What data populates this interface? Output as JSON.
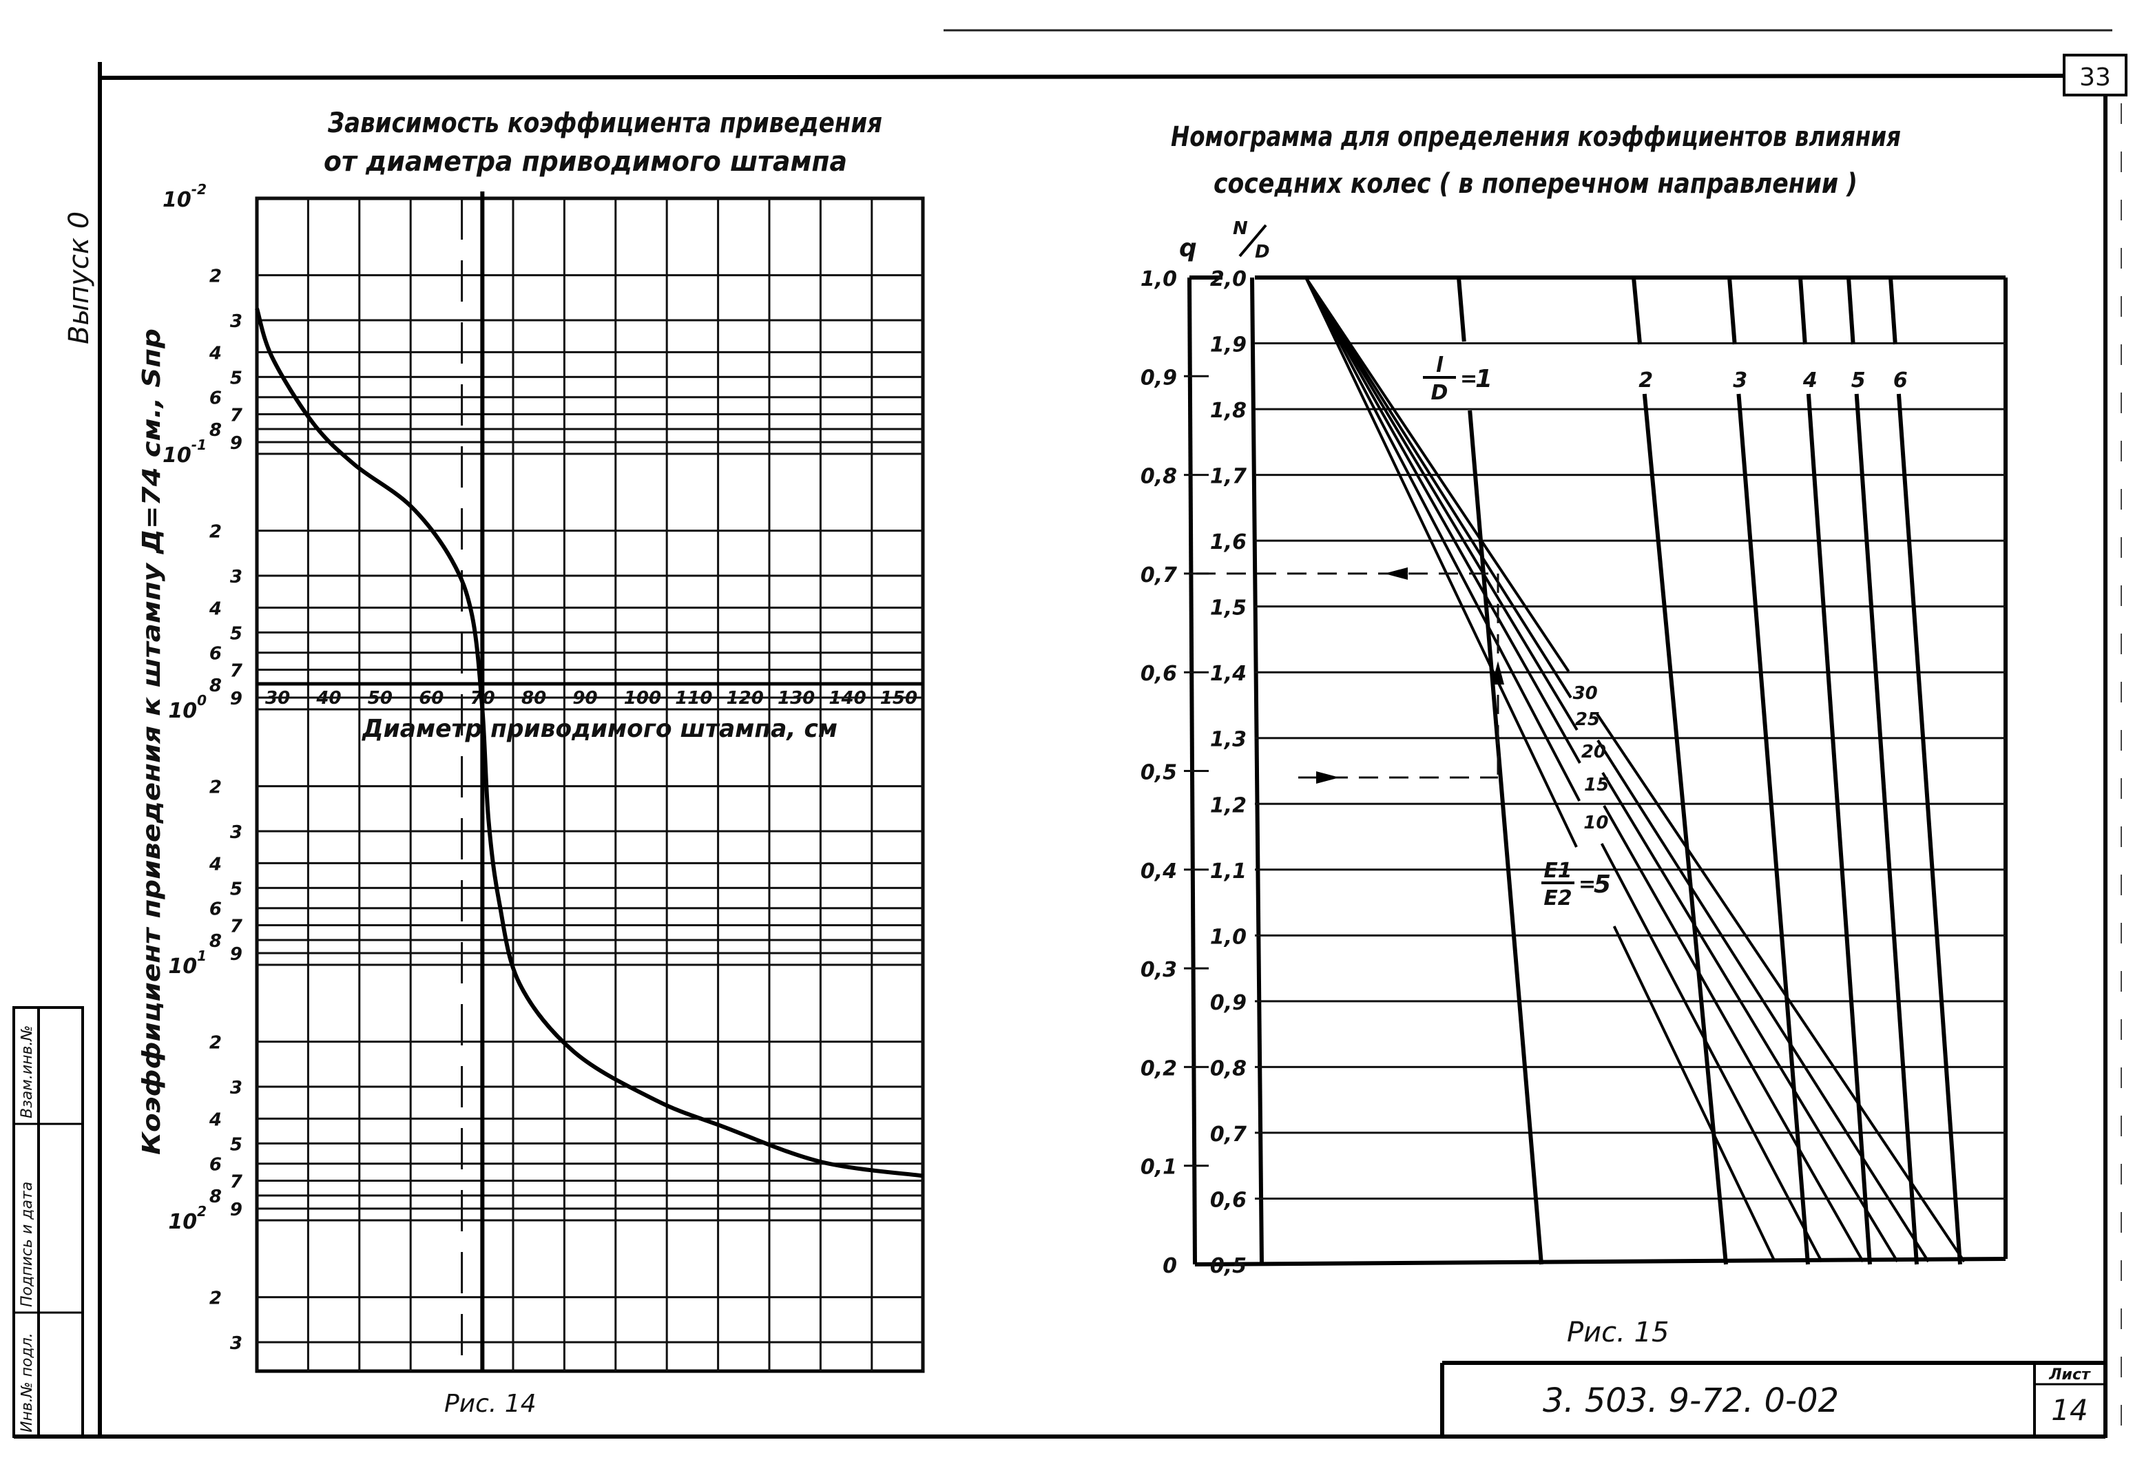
{
  "sheet": {
    "page_number": "33",
    "issue_label": "Выпуск 0",
    "doc_number": "3. 503. 9-72. 0-02",
    "sheet_label": "Лист",
    "sheet_number": "14",
    "strip": {
      "replace_inv": "Взам.инв.№",
      "signature_date": "Подпись и дата",
      "inv_original": "Инв.№ подл."
    }
  },
  "chart_data": [
    {
      "type": "line",
      "title_line1": "Зависимость коэффициента приведения",
      "title_line2": "от диаметра приводимого штампа",
      "xlabel": "Диаметр приводимого штампа, см",
      "ylabel": "Коэффициент приведения к штампу Д=74 см., Sпр",
      "caption": "Рис. 14",
      "x_scale": "linear",
      "y_scale": "log",
      "xlim": [
        30,
        160
      ],
      "ylim": [
        0.01,
        390
      ],
      "grid": true,
      "reference_line_x": 74,
      "x_ticks": [
        "30",
        "40",
        "50",
        "60",
        "70",
        "80",
        "90",
        "100",
        "110",
        "120",
        "130",
        "140",
        "150"
      ],
      "y_decades": [
        {
          "base": "10",
          "exp": "-2"
        },
        {
          "base": "10",
          "exp": "-1"
        },
        {
          "base": "10",
          "exp": "0"
        },
        {
          "base": "10",
          "exp": "1"
        },
        {
          "base": "10",
          "exp": "2"
        }
      ],
      "y_minor_labels": [
        "2",
        "3",
        "4",
        "5",
        "6",
        "7",
        "8",
        "9"
      ],
      "series": [
        {
          "x": [
            30,
            33,
            41,
            49,
            60,
            68,
            72,
            74,
            75.2,
            77.3,
            81.3,
            92,
            108,
            121,
            140,
            160
          ],
          "y": [
            0.027,
            0.042,
            0.076,
            0.11,
            0.16,
            0.26,
            0.43,
            1.0,
            2.7,
            5.7,
            11.9,
            22,
            34,
            43,
            59,
            67
          ]
        }
      ]
    },
    {
      "type": "nomogram",
      "title_line1": "Номограмма для определения коэффициентов влияния",
      "title_line2": "соседних колес ( в поперечном направлении )",
      "caption": "Рис. 15",
      "q_axis": {
        "label": "q",
        "min": 0,
        "max": 1.0,
        "ticks": [
          "0",
          "0,1",
          "0,2",
          "0,3",
          "0,4",
          "0,5",
          "0,6",
          "0,7",
          "0,8",
          "0,9",
          "1,0"
        ]
      },
      "nd_axis": {
        "label_num": "N",
        "label_den": "D",
        "min": 0.5,
        "max": 2.0,
        "ticks": [
          "0,5",
          "0,6",
          "0,7",
          "0,8",
          "0,9",
          "1,0",
          "1,1",
          "1,2",
          "1,3",
          "1,4",
          "1,5",
          "1,6",
          "1,7",
          "1,8",
          "1,9",
          "2,0"
        ]
      },
      "l_over_d": {
        "label_num": "l",
        "label_den": "D",
        "values": [
          "1",
          "2",
          "3",
          "4",
          "5",
          "6"
        ]
      },
      "e_ratio": {
        "label_num": "E1",
        "label_den": "E2",
        "values": [
          "5",
          "10",
          "15",
          "20",
          "25",
          "30"
        ]
      },
      "example": {
        "nd": 1.24,
        "q": 0.7
      }
    }
  ]
}
